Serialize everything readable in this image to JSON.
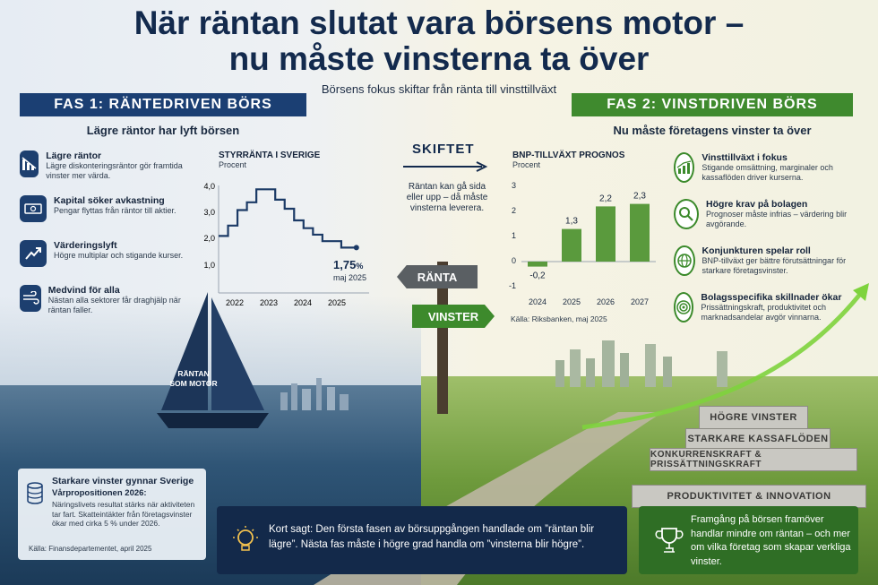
{
  "title_line1": "När räntan slutat vara börsens motor –",
  "title_line2": "nu måste vinsterna ta över",
  "subtitle": "Börsens fokus skiftar från ränta till vinsttillväxt",
  "phase1": {
    "label": "FAS 1: RÄNTEDRIVEN BÖRS",
    "sub": "Lägre räntor har lyft börsen",
    "items": [
      {
        "title": "Lägre räntor",
        "text": "Lägre diskonteringsräntor gör framtida vinster mer värda.",
        "icon": "chart-down-icon"
      },
      {
        "title": "Kapital söker avkastning",
        "text": "Pengar flyttas från räntor till aktier.",
        "icon": "cash-stack-icon"
      },
      {
        "title": "Värderingslyft",
        "text": "Högre multiplar och stigande kurser.",
        "icon": "trend-up-icon"
      },
      {
        "title": "Medvind för alla",
        "text": "Nästan alla sektorer får draghjälp när räntan faller.",
        "icon": "wind-icon"
      }
    ]
  },
  "rate_chart": {
    "title": "STYRRÄNTA I SVERIGE",
    "unit": "Procent",
    "y_ticks": [
      "4,0",
      "3,0",
      "2,0",
      "1,0"
    ],
    "x_ticks": [
      "2022",
      "2023",
      "2024",
      "2025"
    ],
    "end_value": "1,75",
    "end_unit": "%",
    "end_date": "maj 2025"
  },
  "chart_data": [
    {
      "type": "line",
      "title": "STYRRÄNTA I SVERIGE",
      "ylabel": "Procent",
      "x": [
        2021.75,
        2022.0,
        2022.25,
        2022.5,
        2022.75,
        2023.0,
        2023.25,
        2023.5,
        2023.75,
        2024.0,
        2024.25,
        2024.5,
        2024.75,
        2025.0,
        2025.25,
        2025.4
      ],
      "values": [
        2.2,
        2.6,
        3.2,
        3.5,
        4.0,
        4.0,
        3.6,
        3.25,
        2.8,
        2.5,
        2.25,
        2.0,
        2.0,
        1.75,
        1.75,
        1.75
      ],
      "ylim": [
        0,
        4.2
      ]
    },
    {
      "type": "bar",
      "title": "BNP-TILLVÄXT PROGNOS",
      "ylabel": "Procent",
      "categories": [
        "2024",
        "2025",
        "2026",
        "2027"
      ],
      "values": [
        -0.2,
        1.3,
        2.2,
        2.3
      ],
      "ylim": [
        -1,
        3
      ]
    }
  ],
  "gdp_chart": {
    "title": "BNP-TILLVÄXT PROGNOS",
    "unit": "Procent",
    "y_ticks": [
      "3",
      "2",
      "1",
      "0",
      "-1"
    ],
    "categories": [
      "2024",
      "2025",
      "2026",
      "2027"
    ],
    "labels": [
      "-0,2",
      "1,3",
      "2,2",
      "2,3"
    ],
    "source": "Källa: Riksbanken, maj 2025"
  },
  "shift": {
    "label": "SKIFTET",
    "text": "Räntan kan gå sida eller upp – då måste vinsterna leverera.",
    "sign_left": "RÄNTA",
    "sign_right": "VINSTER"
  },
  "boat_label": "RÄNTAN SOM MOTOR",
  "phase2": {
    "label": "FAS 2: VINSTDRIVEN BÖRS",
    "sub": "Nu måste företagens vinster ta över",
    "items": [
      {
        "title": "Vinsttillväxt i fokus",
        "text": "Stigande omsättning, marginaler och kassaflöden driver kurserna.",
        "icon": "growth-chart-icon"
      },
      {
        "title": "Högre krav på bolagen",
        "text": "Prognoser måste infrias – värdering blir avgörande.",
        "icon": "magnifier-icon"
      },
      {
        "title": "Konjunkturen spelar roll",
        "text": "BNP-tillväxt ger bättre förutsättningar för starkare företagsvinster.",
        "icon": "globe-icon"
      },
      {
        "title": "Bolagsspecifika skillnader ökar",
        "text": "Prissättningskraft, produktivitet och marknadsandelar avgör vinnarna.",
        "icon": "target-icon"
      }
    ]
  },
  "steps": [
    "HÖGRE VINSTER",
    "STARKARE KASSAFLÖDEN",
    "KONKURRENSKRAFT & PRISSÄTTNINGSKRAFT",
    "PRODUKTIVITET & INNOVATION"
  ],
  "box_left": {
    "title": "Starkare vinster gynnar Sverige",
    "subtitle": "Vårpropositionen 2026:",
    "text": "Näringslivets resultat stärks när aktiviteten tar fart. Skatteintäkter från företagsvinster ökar med cirka 5 % under 2026.",
    "source": "Källa: Finansdepartementet, april 2025"
  },
  "box_mid": {
    "text": "Kort sagt: Den första fasen av börsuppgången handlade om ”räntan blir lägre”. Nästa fas måste i högre grad handla om ”vinsterna blir högre”."
  },
  "box_right": {
    "text": "Framgång på börsen framöver handlar mindre om räntan – och mer om vilka företag som skapar verkliga vinster."
  }
}
